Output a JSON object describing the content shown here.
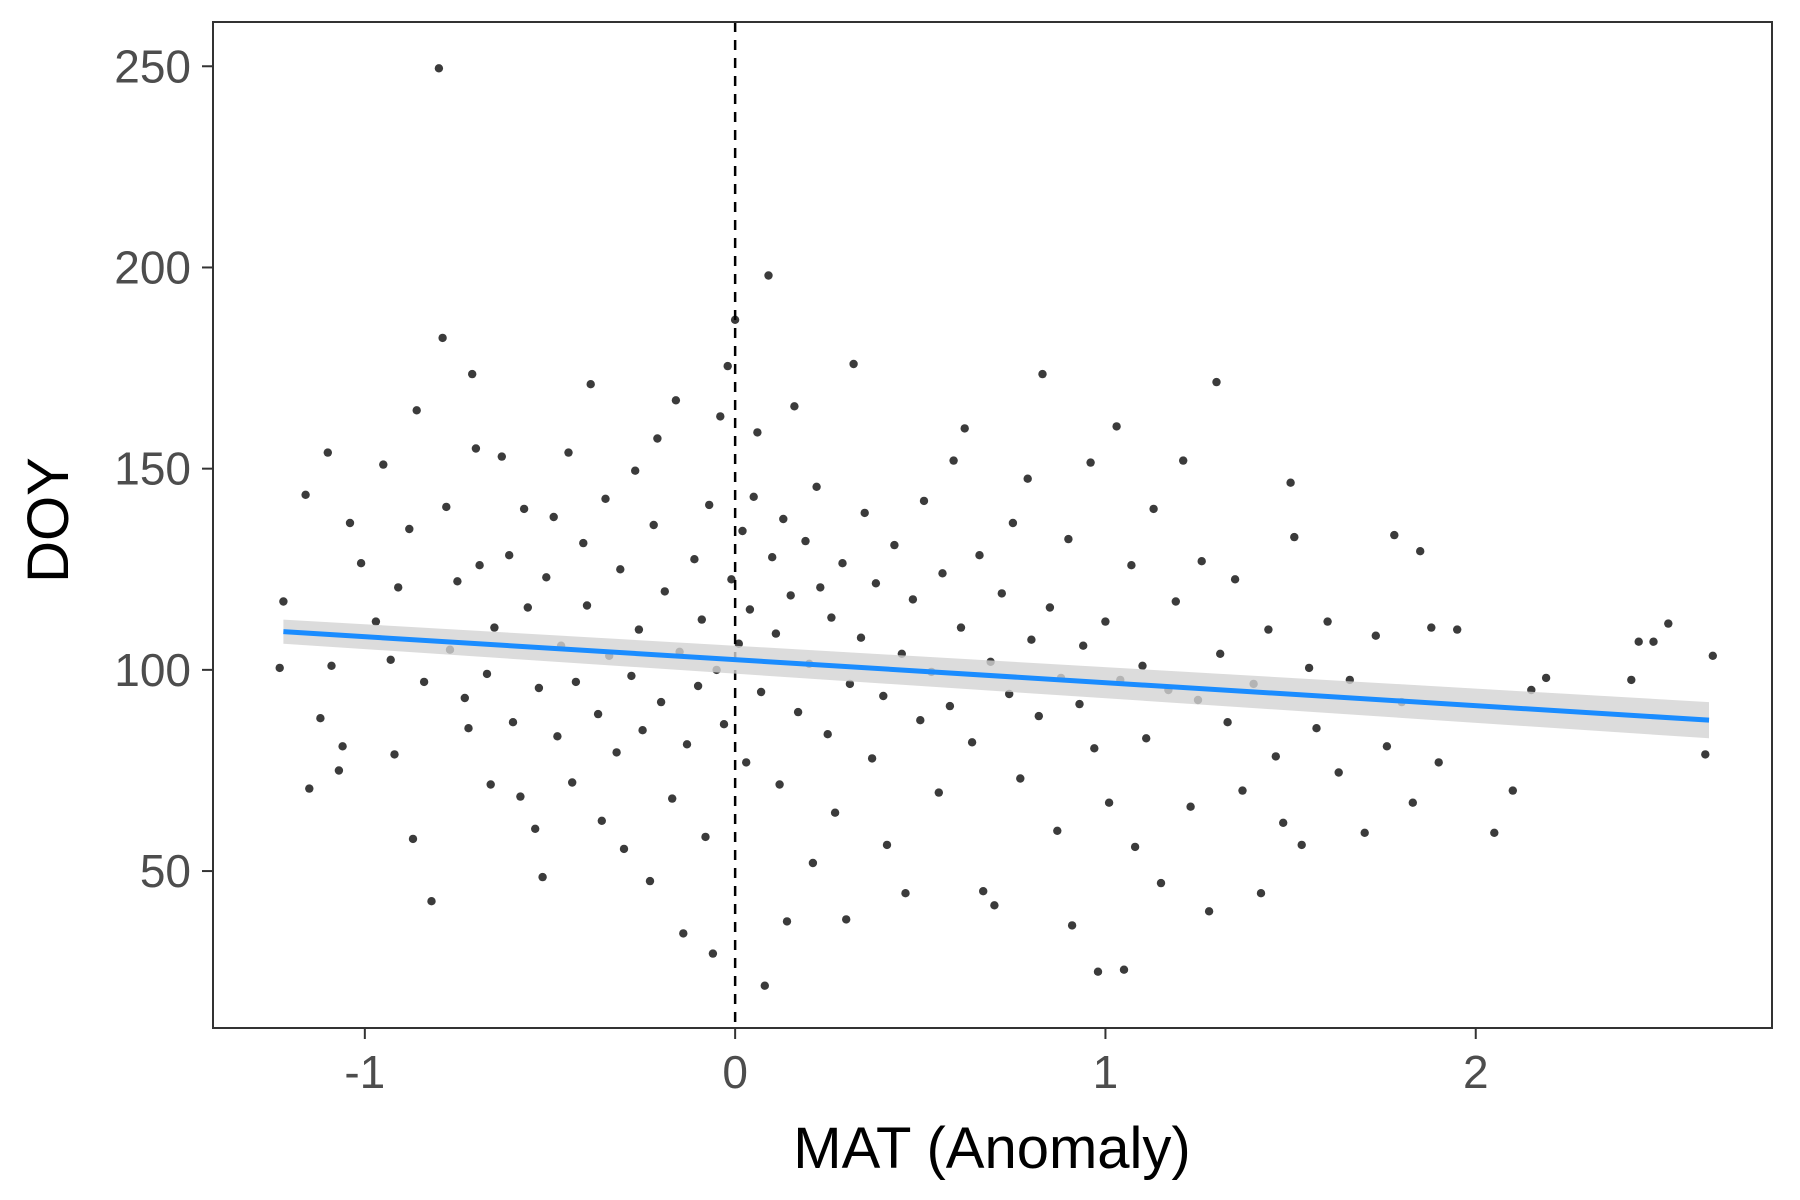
{
  "chart_data": {
    "type": "scatter",
    "xlabel": "MAT (Anomaly)",
    "ylabel": "DOY",
    "xlim": [
      -1.41,
      2.8
    ],
    "ylim": [
      11,
      261
    ],
    "x_ticks": [
      -1,
      0,
      1,
      2
    ],
    "y_ticks": [
      50,
      100,
      150,
      200,
      250
    ],
    "x_tick_labels": [
      "-1",
      "0",
      "1",
      "2"
    ],
    "y_tick_labels": [
      "50",
      "100",
      "150",
      "200",
      "250"
    ],
    "grid": false,
    "reference_line": {
      "orientation": "vertical",
      "x": 0,
      "style": "dashed",
      "color": "#000000"
    },
    "trend": {
      "type": "linear-fit",
      "x_range": [
        -1.22,
        2.63
      ],
      "y_start": 109.5,
      "y_end": 87.5,
      "ci_halfwidth": 3.0,
      "color": "#1a8cff",
      "band_color": "#d3d3d3"
    },
    "point_color": "#3b3b3b",
    "points": [
      [
        -1.23,
        100.5
      ],
      [
        -1.22,
        117.0
      ],
      [
        -1.16,
        143.5
      ],
      [
        -1.15,
        70.5
      ],
      [
        -1.12,
        88.0
      ],
      [
        -1.1,
        154.0
      ],
      [
        -1.09,
        101.0
      ],
      [
        -1.07,
        75.0
      ],
      [
        -1.06,
        81.0
      ],
      [
        -1.04,
        136.5
      ],
      [
        -1.01,
        126.5
      ],
      [
        -0.97,
        112.0
      ],
      [
        -0.95,
        151.0
      ],
      [
        -0.93,
        102.5
      ],
      [
        -0.92,
        79.0
      ],
      [
        -0.91,
        120.5
      ],
      [
        -0.88,
        135.0
      ],
      [
        -0.87,
        58.0
      ],
      [
        -0.86,
        164.5
      ],
      [
        -0.84,
        97.0
      ],
      [
        -0.82,
        42.5
      ],
      [
        -0.8,
        249.5
      ],
      [
        -0.79,
        182.5
      ],
      [
        -0.78,
        140.5
      ],
      [
        -0.77,
        105.0
      ],
      [
        -0.75,
        122.0
      ],
      [
        -0.73,
        93.0
      ],
      [
        -0.72,
        85.5
      ],
      [
        -0.71,
        173.5
      ],
      [
        -0.7,
        155.0
      ],
      [
        -0.69,
        126.0
      ],
      [
        -0.67,
        99.0
      ],
      [
        -0.66,
        71.5
      ],
      [
        -0.65,
        110.5
      ],
      [
        -0.63,
        153.0
      ],
      [
        -0.61,
        128.5
      ],
      [
        -0.6,
        87.0
      ],
      [
        -0.58,
        68.5
      ],
      [
        -0.57,
        140.0
      ],
      [
        -0.56,
        115.5
      ],
      [
        -0.54,
        60.5
      ],
      [
        -0.53,
        95.5
      ],
      [
        -0.52,
        48.5
      ],
      [
        -0.51,
        123.0
      ],
      [
        -0.49,
        138.0
      ],
      [
        -0.48,
        83.5
      ],
      [
        -0.47,
        106.0
      ],
      [
        -0.45,
        154.0
      ],
      [
        -0.44,
        72.0
      ],
      [
        -0.43,
        97.0
      ],
      [
        -0.41,
        131.5
      ],
      [
        -0.4,
        116.0
      ],
      [
        -0.39,
        171.0
      ],
      [
        -0.37,
        89.0
      ],
      [
        -0.36,
        62.5
      ],
      [
        -0.35,
        142.5
      ],
      [
        -0.34,
        103.5
      ],
      [
        -0.32,
        79.5
      ],
      [
        -0.31,
        125.0
      ],
      [
        -0.3,
        55.5
      ],
      [
        -0.28,
        98.5
      ],
      [
        -0.27,
        149.5
      ],
      [
        -0.26,
        110.0
      ],
      [
        -0.25,
        85.0
      ],
      [
        -0.23,
        47.5
      ],
      [
        -0.22,
        136.0
      ],
      [
        -0.21,
        157.5
      ],
      [
        -0.2,
        92.0
      ],
      [
        -0.19,
        119.5
      ],
      [
        -0.17,
        68.0
      ],
      [
        -0.16,
        167.0
      ],
      [
        -0.15,
        104.5
      ],
      [
        -0.14,
        34.5
      ],
      [
        -0.13,
        81.5
      ],
      [
        -0.11,
        127.5
      ],
      [
        -0.1,
        96.0
      ],
      [
        -0.09,
        112.5
      ],
      [
        -0.08,
        58.5
      ],
      [
        -0.07,
        141.0
      ],
      [
        -0.06,
        29.5
      ],
      [
        -0.05,
        100.0
      ],
      [
        -0.04,
        163.0
      ],
      [
        -0.03,
        86.5
      ],
      [
        -0.02,
        175.5
      ],
      [
        -0.01,
        122.5
      ],
      [
        0.0,
        187.0
      ],
      [
        0.01,
        106.5
      ],
      [
        0.02,
        134.5
      ],
      [
        0.03,
        77.0
      ],
      [
        0.04,
        115.0
      ],
      [
        0.05,
        143.0
      ],
      [
        0.06,
        159.0
      ],
      [
        0.07,
        94.5
      ],
      [
        0.08,
        21.5
      ],
      [
        0.09,
        198.0
      ],
      [
        0.1,
        128.0
      ],
      [
        0.11,
        109.0
      ],
      [
        0.12,
        71.5
      ],
      [
        0.13,
        137.5
      ],
      [
        0.14,
        37.5
      ],
      [
        0.15,
        118.5
      ],
      [
        0.16,
        165.5
      ],
      [
        0.17,
        89.5
      ],
      [
        0.19,
        132.0
      ],
      [
        0.2,
        101.5
      ],
      [
        0.21,
        52.0
      ],
      [
        0.22,
        145.5
      ],
      [
        0.23,
        120.5
      ],
      [
        0.25,
        84.0
      ],
      [
        0.26,
        113.0
      ],
      [
        0.27,
        64.5
      ],
      [
        0.29,
        126.5
      ],
      [
        0.3,
        38.0
      ],
      [
        0.31,
        96.5
      ],
      [
        0.32,
        176.0
      ],
      [
        0.34,
        108.0
      ],
      [
        0.35,
        139.0
      ],
      [
        0.37,
        78.0
      ],
      [
        0.38,
        121.5
      ],
      [
        0.4,
        93.5
      ],
      [
        0.41,
        56.5
      ],
      [
        0.43,
        131.0
      ],
      [
        0.45,
        104.0
      ],
      [
        0.46,
        44.5
      ],
      [
        0.48,
        117.5
      ],
      [
        0.5,
        87.5
      ],
      [
        0.51,
        142.0
      ],
      [
        0.53,
        99.5
      ],
      [
        0.55,
        69.5
      ],
      [
        0.56,
        124.0
      ],
      [
        0.58,
        91.0
      ],
      [
        0.59,
        152.0
      ],
      [
        0.61,
        110.5
      ],
      [
        0.62,
        160.0
      ],
      [
        0.64,
        82.0
      ],
      [
        0.66,
        128.5
      ],
      [
        0.67,
        45.0
      ],
      [
        0.69,
        102.0
      ],
      [
        0.7,
        41.5
      ],
      [
        0.72,
        119.0
      ],
      [
        0.74,
        94.0
      ],
      [
        0.75,
        136.5
      ],
      [
        0.77,
        73.0
      ],
      [
        0.79,
        147.5
      ],
      [
        0.8,
        107.5
      ],
      [
        0.82,
        88.5
      ],
      [
        0.83,
        173.5
      ],
      [
        0.85,
        115.5
      ],
      [
        0.87,
        60.0
      ],
      [
        0.88,
        98.0
      ],
      [
        0.9,
        132.5
      ],
      [
        0.91,
        36.5
      ],
      [
        0.93,
        91.5
      ],
      [
        0.94,
        106.0
      ],
      [
        0.96,
        151.5
      ],
      [
        0.97,
        80.5
      ],
      [
        0.98,
        25.0
      ],
      [
        1.0,
        112.0
      ],
      [
        1.01,
        67.0
      ],
      [
        1.03,
        160.5
      ],
      [
        1.04,
        97.5
      ],
      [
        1.05,
        25.5
      ],
      [
        1.07,
        126.0
      ],
      [
        1.08,
        56.0
      ],
      [
        1.1,
        101.0
      ],
      [
        1.11,
        83.0
      ],
      [
        1.13,
        140.0
      ],
      [
        1.15,
        47.0
      ],
      [
        1.17,
        95.0
      ],
      [
        1.19,
        117.0
      ],
      [
        1.21,
        152.0
      ],
      [
        1.23,
        66.0
      ],
      [
        1.25,
        92.5
      ],
      [
        1.26,
        127.0
      ],
      [
        1.28,
        40.0
      ],
      [
        1.3,
        171.5
      ],
      [
        1.31,
        104.0
      ],
      [
        1.33,
        87.0
      ],
      [
        1.35,
        122.5
      ],
      [
        1.37,
        70.0
      ],
      [
        1.4,
        96.5
      ],
      [
        1.42,
        44.5
      ],
      [
        1.44,
        110.0
      ],
      [
        1.46,
        78.5
      ],
      [
        1.48,
        62.0
      ],
      [
        1.5,
        146.5
      ],
      [
        1.51,
        133.0
      ],
      [
        1.53,
        56.5
      ],
      [
        1.55,
        100.5
      ],
      [
        1.57,
        85.5
      ],
      [
        1.6,
        112.0
      ],
      [
        1.63,
        74.5
      ],
      [
        1.66,
        97.5
      ],
      [
        1.7,
        59.5
      ],
      [
        1.73,
        108.5
      ],
      [
        1.76,
        81.0
      ],
      [
        1.78,
        133.5
      ],
      [
        1.8,
        92.0
      ],
      [
        1.83,
        67.0
      ],
      [
        1.85,
        129.5
      ],
      [
        1.88,
        110.5
      ],
      [
        1.9,
        77.0
      ],
      [
        1.95,
        110.0
      ],
      [
        2.05,
        59.5
      ],
      [
        2.1,
        70.0
      ],
      [
        2.15,
        95.0
      ],
      [
        2.19,
        98.0
      ],
      [
        2.42,
        97.5
      ],
      [
        2.44,
        107.0
      ],
      [
        2.48,
        107.0
      ],
      [
        2.52,
        111.5
      ],
      [
        2.62,
        79.0
      ],
      [
        2.64,
        103.5
      ]
    ]
  }
}
